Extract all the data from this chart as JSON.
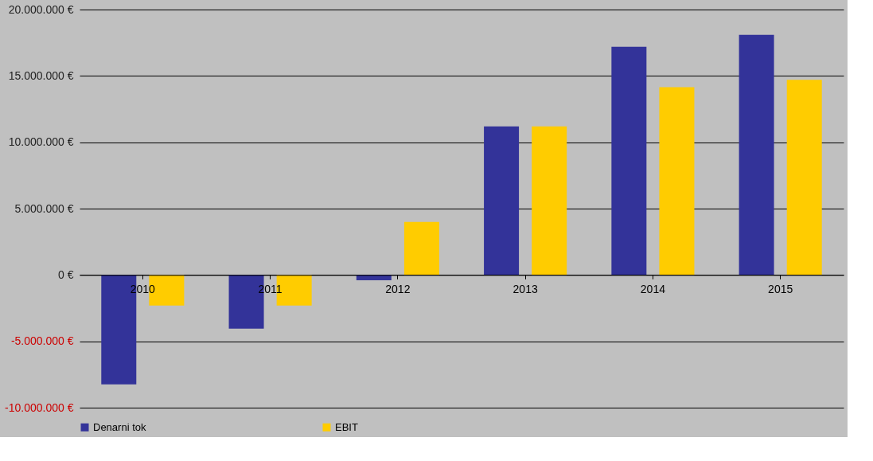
{
  "chart_data": {
    "type": "bar",
    "categories": [
      "2010",
      "2011",
      "2012",
      "2013",
      "2014",
      "2015"
    ],
    "series": [
      {
        "name": "Denarni tok",
        "color": "#333399",
        "values": [
          -8250000,
          -4050000,
          -400000,
          11200000,
          17200000,
          18100000
        ]
      },
      {
        "name": "EBIT",
        "color": "#ffcc00",
        "values": [
          -2300000,
          -2300000,
          4000000,
          11200000,
          14150000,
          14700000
        ]
      }
    ],
    "ylim": [
      -10000000,
      20000000
    ],
    "yticks": [
      {
        "value": -10000000,
        "label": "-10.000.000 €"
      },
      {
        "value": -5000000,
        "label": "-5.000.000 €"
      },
      {
        "value": 0,
        "label": "0 €"
      },
      {
        "value": 5000000,
        "label": "5.000.000 €"
      },
      {
        "value": 10000000,
        "label": "10.000.000 €"
      },
      {
        "value": 15000000,
        "label": "15.000.000 €"
      },
      {
        "value": 20000000,
        "label": "20.000.000 €"
      }
    ],
    "grid": "y",
    "legend": "bottom"
  }
}
